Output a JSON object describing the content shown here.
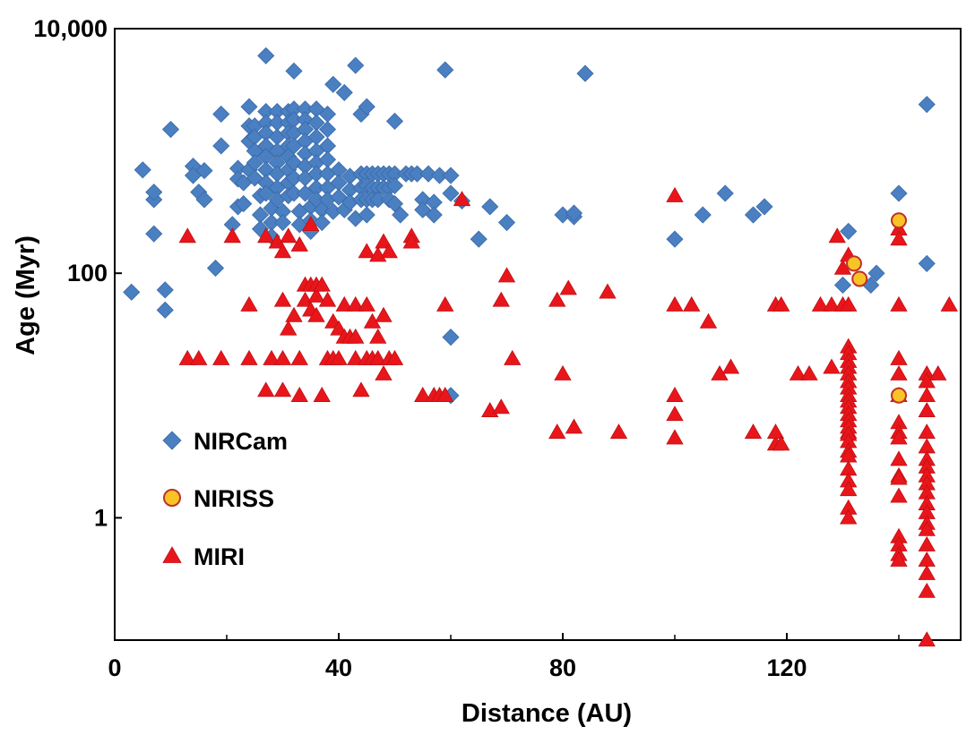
{
  "chart_data": {
    "type": "scatter",
    "xlabel": "Distance (AU)",
    "ylabel": "Age (Myr)",
    "xscale": "linear",
    "yscale": "log",
    "xlim": [
      0,
      150
    ],
    "ylim": [
      0.1,
      10000
    ],
    "x_ticks": [
      {
        "value": 0,
        "label": "0"
      },
      {
        "value": 40,
        "label": "40"
      },
      {
        "value": 80,
        "label": "80"
      },
      {
        "value": 120,
        "label": "120"
      }
    ],
    "y_ticks": [
      {
        "value": 1,
        "label": "1"
      },
      {
        "value": 100,
        "label": "100"
      },
      {
        "value": 10000,
        "label": "10,000"
      }
    ],
    "legend_position": "left-middle",
    "series": [
      {
        "name": "NIRCam",
        "marker": "diamond",
        "color": "#4a7fc1",
        "points": [
          [
            3,
            70
          ],
          [
            5,
            700
          ],
          [
            7,
            210
          ],
          [
            7,
            400
          ],
          [
            7,
            460
          ],
          [
            9,
            73
          ],
          [
            9,
            50
          ],
          [
            10,
            1500
          ],
          [
            14,
            750
          ],
          [
            14,
            630
          ],
          [
            15,
            460
          ],
          [
            16,
            690
          ],
          [
            16,
            400
          ],
          [
            18,
            110
          ],
          [
            19,
            2000
          ],
          [
            19,
            1100
          ],
          [
            21,
            250
          ],
          [
            22,
            720
          ],
          [
            22,
            590
          ],
          [
            22,
            350
          ],
          [
            23,
            550
          ],
          [
            23,
            370
          ],
          [
            24,
            700
          ],
          [
            24,
            1200
          ],
          [
            24,
            2300
          ],
          [
            24,
            1600
          ],
          [
            25,
            1600
          ],
          [
            25,
            1300
          ],
          [
            25,
            1000
          ],
          [
            25,
            800
          ],
          [
            25,
            600
          ],
          [
            26,
            430
          ],
          [
            26,
            300
          ],
          [
            26,
            230
          ],
          [
            27,
            6000
          ],
          [
            27,
            2100
          ],
          [
            27,
            1700
          ],
          [
            27,
            1400
          ],
          [
            27,
            1100
          ],
          [
            27,
            900
          ],
          [
            27,
            700
          ],
          [
            27,
            550
          ],
          [
            27,
            450
          ],
          [
            28,
            340
          ],
          [
            28,
            260
          ],
          [
            28,
            200
          ],
          [
            29,
            2100
          ],
          [
            29,
            1700
          ],
          [
            29,
            1300
          ],
          [
            29,
            1000
          ],
          [
            29,
            800
          ],
          [
            29,
            650
          ],
          [
            29,
            500
          ],
          [
            29,
            400
          ],
          [
            30,
            320
          ],
          [
            30,
            260
          ],
          [
            31,
            2100
          ],
          [
            31,
            1700
          ],
          [
            31,
            1400
          ],
          [
            31,
            1100
          ],
          [
            31,
            900
          ],
          [
            31,
            700
          ],
          [
            31,
            550
          ],
          [
            31,
            430
          ],
          [
            32,
            4500
          ],
          [
            32,
            2200
          ],
          [
            32,
            1800
          ],
          [
            32,
            1400
          ],
          [
            32,
            1100
          ],
          [
            32,
            800
          ],
          [
            32,
            600
          ],
          [
            32,
            450
          ],
          [
            33,
            320
          ],
          [
            33,
            250
          ],
          [
            34,
            2200
          ],
          [
            34,
            1800
          ],
          [
            34,
            1500
          ],
          [
            34,
            1200
          ],
          [
            34,
            950
          ],
          [
            34,
            750
          ],
          [
            34,
            600
          ],
          [
            34,
            450
          ],
          [
            35,
            350
          ],
          [
            35,
            270
          ],
          [
            35,
            220
          ],
          [
            36,
            2200
          ],
          [
            36,
            1700
          ],
          [
            36,
            1300
          ],
          [
            36,
            1000
          ],
          [
            36,
            800
          ],
          [
            36,
            650
          ],
          [
            36,
            500
          ],
          [
            36,
            400
          ],
          [
            37,
            330
          ],
          [
            37,
            260
          ],
          [
            38,
            2000
          ],
          [
            38,
            1500
          ],
          [
            38,
            1100
          ],
          [
            38,
            850
          ],
          [
            38,
            650
          ],
          [
            38,
            500
          ],
          [
            38,
            400
          ],
          [
            39,
            320
          ],
          [
            39,
            3500
          ],
          [
            40,
            700
          ],
          [
            40,
            550
          ],
          [
            40,
            420
          ],
          [
            41,
            330
          ],
          [
            41,
            3000
          ],
          [
            42,
            620
          ],
          [
            42,
            480
          ],
          [
            42,
            380
          ],
          [
            43,
            5000
          ],
          [
            43,
            280
          ],
          [
            44,
            650
          ],
          [
            44,
            500
          ],
          [
            44,
            400
          ],
          [
            44,
            2000
          ],
          [
            45,
            2300
          ],
          [
            45,
            650
          ],
          [
            45,
            520
          ],
          [
            45,
            400
          ],
          [
            45,
            300
          ],
          [
            46,
            650
          ],
          [
            46,
            500
          ],
          [
            46,
            400
          ],
          [
            47,
            650
          ],
          [
            47,
            500
          ],
          [
            47,
            400
          ],
          [
            48,
            650
          ],
          [
            48,
            500
          ],
          [
            49,
            650
          ],
          [
            49,
            500
          ],
          [
            49,
            400
          ],
          [
            50,
            1750
          ],
          [
            50,
            650
          ],
          [
            50,
            520
          ],
          [
            50,
            370
          ],
          [
            51,
            300
          ],
          [
            52,
            650
          ],
          [
            53,
            650
          ],
          [
            54,
            650
          ],
          [
            55,
            400
          ],
          [
            55,
            330
          ],
          [
            56,
            650
          ],
          [
            57,
            380
          ],
          [
            57,
            300
          ],
          [
            58,
            630
          ],
          [
            59,
            4600
          ],
          [
            60,
            630
          ],
          [
            60,
            450
          ],
          [
            60,
            30
          ],
          [
            60,
            10
          ],
          [
            62,
            390
          ],
          [
            65,
            190
          ],
          [
            67,
            350
          ],
          [
            70,
            260
          ],
          [
            80,
            300
          ],
          [
            82,
            290
          ],
          [
            82,
            310
          ],
          [
            84,
            4300
          ],
          [
            100,
            190
          ],
          [
            105,
            300
          ],
          [
            109,
            450
          ],
          [
            114,
            300
          ],
          [
            116,
            350
          ],
          [
            130,
            80
          ],
          [
            131,
            220
          ],
          [
            135,
            80
          ],
          [
            136,
            100
          ],
          [
            140,
            450
          ],
          [
            145,
            2400
          ],
          [
            145,
            120
          ]
        ]
      },
      {
        "name": "NIRISS",
        "marker": "circle",
        "color": "#f7c325",
        "edge_color": "#c0302a",
        "points": [
          [
            132,
            120
          ],
          [
            133,
            90
          ],
          [
            140,
            270
          ],
          [
            140,
            10
          ]
        ]
      },
      {
        "name": "MIRI",
        "marker": "triangle",
        "color": "#e8161b",
        "points": [
          [
            13,
            200
          ],
          [
            13,
            20
          ],
          [
            15,
            20
          ],
          [
            19,
            20
          ],
          [
            21,
            200
          ],
          [
            24,
            55
          ],
          [
            24,
            20
          ],
          [
            27,
            200
          ],
          [
            27,
            11
          ],
          [
            28,
            20
          ],
          [
            29,
            180
          ],
          [
            30,
            150
          ],
          [
            30,
            60
          ],
          [
            30,
            20
          ],
          [
            30,
            11
          ],
          [
            31,
            35
          ],
          [
            31,
            200
          ],
          [
            32,
            45
          ],
          [
            33,
            20
          ],
          [
            33,
            170
          ],
          [
            33,
            10
          ],
          [
            34,
            80
          ],
          [
            34,
            60
          ],
          [
            35,
            80
          ],
          [
            35,
            50
          ],
          [
            35,
            250
          ],
          [
            36,
            80
          ],
          [
            36,
            65
          ],
          [
            36,
            45
          ],
          [
            37,
            80
          ],
          [
            37,
            10
          ],
          [
            38,
            60
          ],
          [
            38,
            20
          ],
          [
            39,
            40
          ],
          [
            39,
            20
          ],
          [
            40,
            35
          ],
          [
            40,
            20
          ],
          [
            41,
            30
          ],
          [
            41,
            55
          ],
          [
            42,
            30
          ],
          [
            43,
            55
          ],
          [
            43,
            30
          ],
          [
            43,
            20
          ],
          [
            44,
            11
          ],
          [
            45,
            20
          ],
          [
            45,
            55
          ],
          [
            45,
            150
          ],
          [
            46,
            40
          ],
          [
            46,
            20
          ],
          [
            47,
            140
          ],
          [
            47,
            30
          ],
          [
            47,
            20
          ],
          [
            48,
            180
          ],
          [
            48,
            15
          ],
          [
            48,
            45
          ],
          [
            49,
            150
          ],
          [
            49,
            20
          ],
          [
            50,
            20
          ],
          [
            53,
            200
          ],
          [
            53,
            180
          ],
          [
            55,
            10
          ],
          [
            57,
            10
          ],
          [
            58,
            10
          ],
          [
            59,
            55
          ],
          [
            59,
            10
          ],
          [
            62,
            400
          ],
          [
            67,
            7.5
          ],
          [
            69,
            8
          ],
          [
            69,
            60
          ],
          [
            70,
            95
          ],
          [
            71,
            20
          ],
          [
            79,
            5
          ],
          [
            79,
            60
          ],
          [
            80,
            15
          ],
          [
            81,
            75
          ],
          [
            82,
            5.5
          ],
          [
            88,
            70
          ],
          [
            90,
            5
          ],
          [
            100,
            430
          ],
          [
            100,
            55
          ],
          [
            100,
            10
          ],
          [
            100,
            7
          ],
          [
            100,
            4.5
          ],
          [
            103,
            55
          ],
          [
            106,
            40
          ],
          [
            108,
            15
          ],
          [
            110,
            17
          ],
          [
            114,
            5
          ],
          [
            118,
            4
          ],
          [
            118,
            5
          ],
          [
            118,
            55
          ],
          [
            119,
            55
          ],
          [
            119,
            4
          ],
          [
            122,
            15
          ],
          [
            124,
            15
          ],
          [
            126,
            55
          ],
          [
            128,
            55
          ],
          [
            128,
            17
          ],
          [
            129,
            200
          ],
          [
            130,
            55
          ],
          [
            130,
            110
          ],
          [
            131,
            140
          ],
          [
            131,
            55
          ],
          [
            131,
            5
          ]
        ]
      }
    ],
    "miri_columns": [
      {
        "x": 131,
        "ys": [
          25,
          22,
          19,
          17,
          15,
          13,
          11.5,
          10,
          9,
          8,
          7,
          6.2,
          5.5,
          4.8,
          4.2,
          3.5,
          3.2,
          2.5,
          2,
          1.7,
          1.2,
          1
        ]
      },
      {
        "x": 140,
        "ys": [
          230,
          190,
          55,
          20,
          15,
          10,
          6,
          5,
          4.5,
          3,
          2.2,
          2.1,
          1.5,
          0.7,
          0.6,
          0.5,
          0.45
        ]
      },
      {
        "x": 145,
        "ys": [
          15,
          13,
          10,
          7.5,
          5,
          3.8,
          3,
          2.6,
          2.2,
          1.9,
          1.6,
          1.3,
          1.1,
          0.9,
          0.8,
          0.6,
          0.45,
          0.35,
          0.25,
          0.1
        ]
      },
      {
        "x": 147,
        "ys": [
          15
        ]
      },
      {
        "x": 149,
        "ys": [
          55
        ]
      }
    ]
  }
}
